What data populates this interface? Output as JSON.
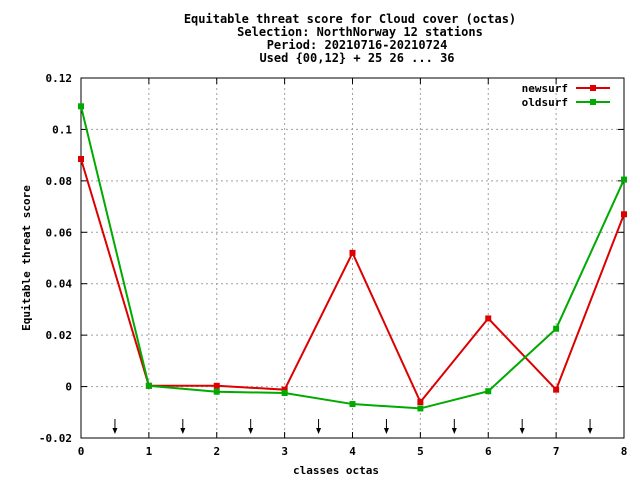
{
  "chart_data": {
    "type": "line",
    "title_lines": [
      "Equitable threat score  for Cloud cover (octas)",
      "Selection: NorthNorway     12 stations",
      "Period: 20210716-20210724",
      "Used {00,12} + 25 26 ... 36"
    ],
    "xlabel": "classes octas",
    "ylabel": "Equitable threat score",
    "xlim": [
      0,
      8
    ],
    "ylim": [
      -0.02,
      0.12
    ],
    "x_ticks": [
      "0",
      "1",
      "2",
      "3",
      "4",
      "5",
      "6",
      "7",
      "8"
    ],
    "y_ticks": [
      "-0.02",
      "0",
      "0.02",
      "0.04",
      "0.06",
      "0.08",
      "0.1",
      "0.12"
    ],
    "grid": true,
    "legend_position": "top-right",
    "x": [
      0,
      1,
      2,
      3,
      4,
      5,
      6,
      7,
      8
    ],
    "series": [
      {
        "name": "newsurf",
        "color": "#dd0000",
        "values": [
          0.0885,
          0.0003,
          0.0003,
          -0.0012,
          0.052,
          -0.006,
          0.0265,
          -0.0012,
          0.067
        ]
      },
      {
        "name": "oldsurf",
        "color": "#00aa00",
        "values": [
          0.109,
          0.0003,
          -0.002,
          -0.0025,
          -0.0068,
          -0.0085,
          -0.0018,
          0.0225,
          0.0805
        ]
      }
    ],
    "arrow_markers_x": [
      0.5,
      1.5,
      2.5,
      3.5,
      4.5,
      5.5,
      6.5,
      7.5
    ]
  }
}
